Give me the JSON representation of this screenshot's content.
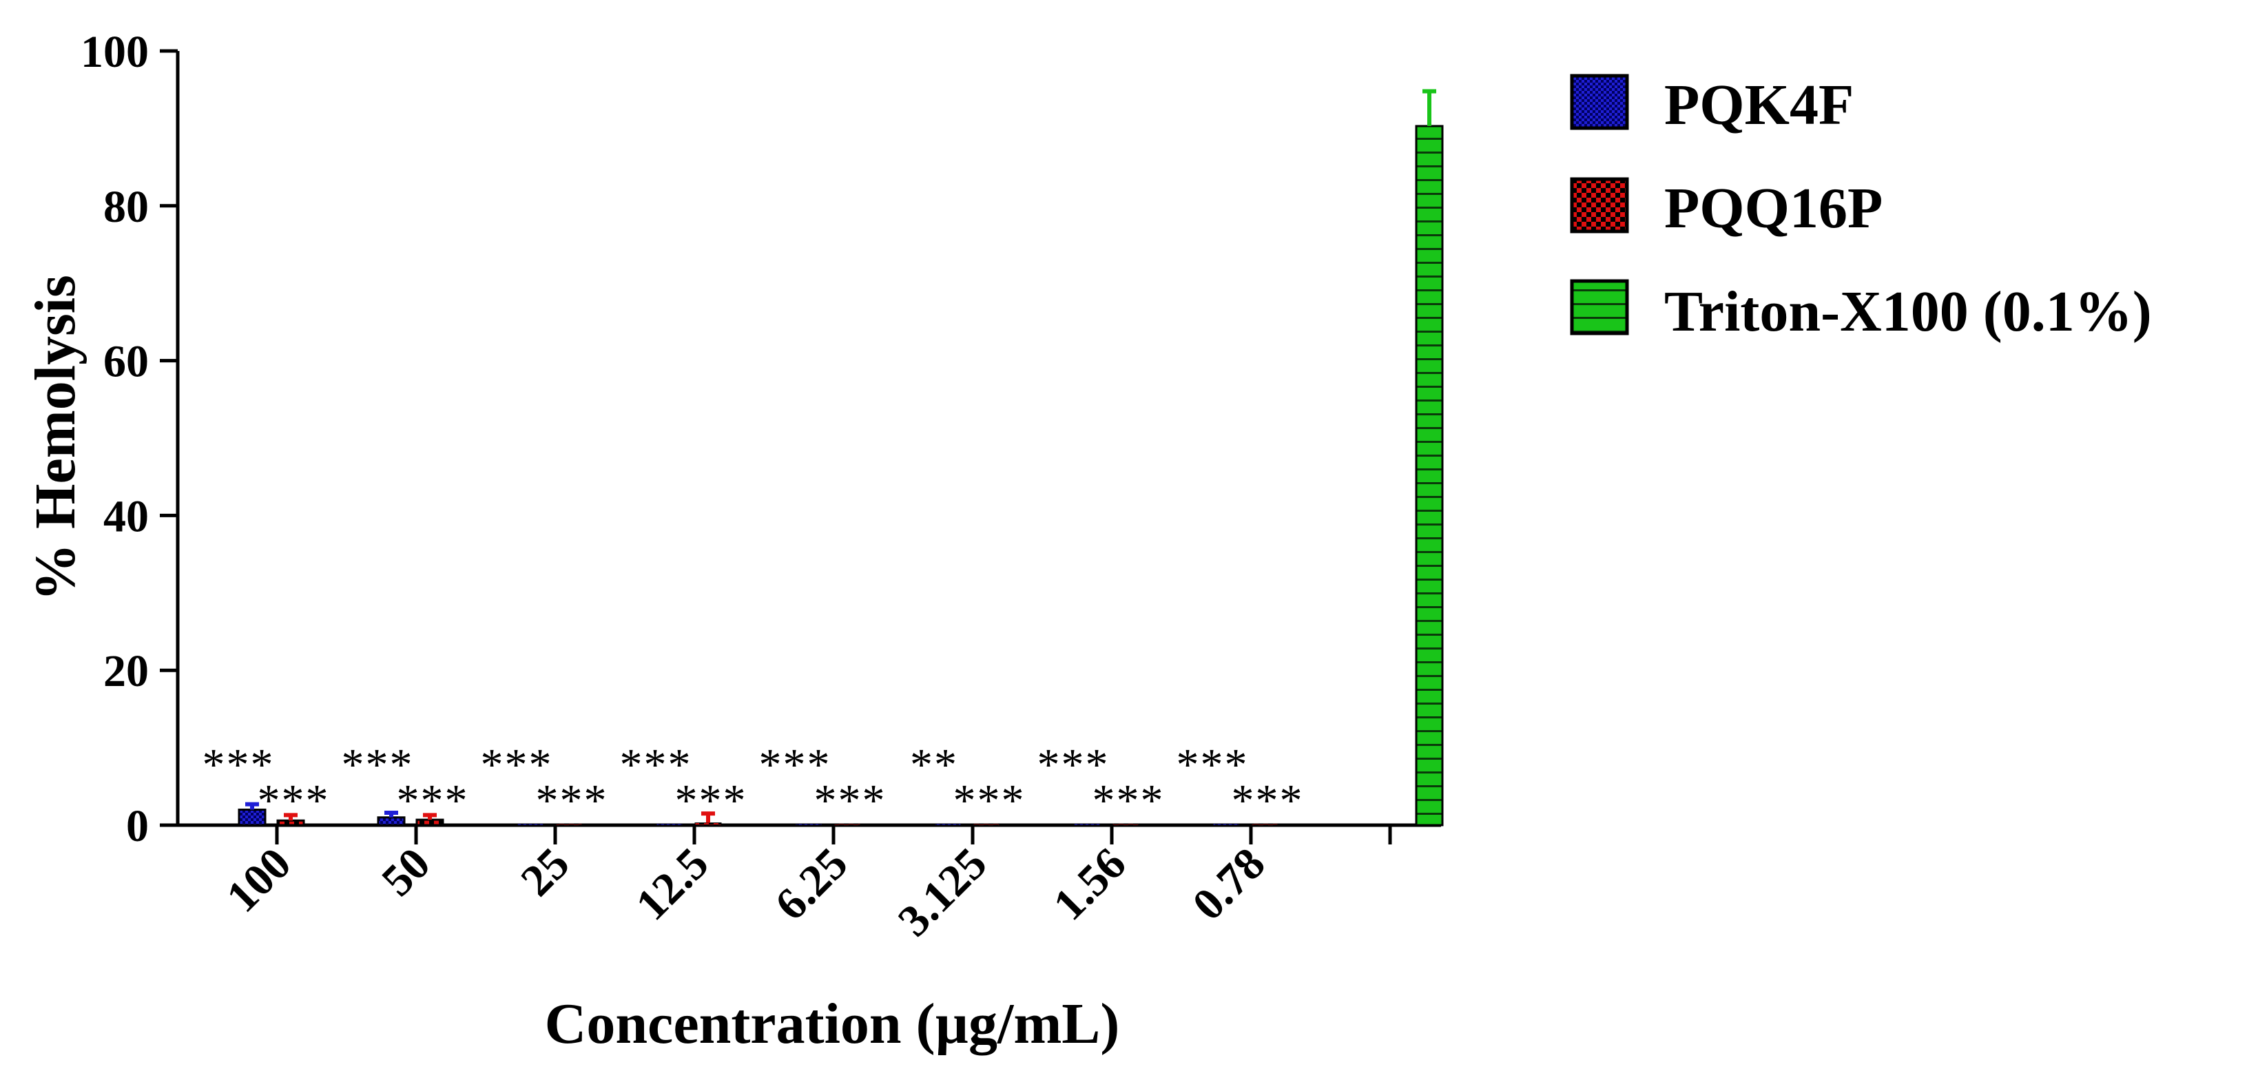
{
  "chart_data": {
    "type": "bar",
    "xlabel": "Concentration (µg/mL)",
    "ylabel": "% Hemolysis",
    "ylim": [
      0,
      100
    ],
    "yticks": [
      0,
      20,
      40,
      60,
      80,
      100
    ],
    "categories": [
      "100",
      "50",
      "25",
      "12.5",
      "6.25",
      "3.125",
      "1.56",
      "0.78",
      ""
    ],
    "series": [
      {
        "name": "PQK4F",
        "color": "#1f1fd6",
        "pattern": "checker-small",
        "values": [
          2.0,
          1.0,
          0.1,
          0.1,
          0.0,
          0.1,
          0.1,
          0.0,
          null
        ],
        "errors": [
          0.7,
          0.6,
          0.0,
          0.0,
          0.0,
          0.0,
          0.0,
          0.0,
          null
        ],
        "significance": [
          "***",
          "***",
          "***",
          "***",
          "***",
          "**",
          "***",
          "***",
          ""
        ]
      },
      {
        "name": "PQQ16P",
        "color": "#e01010",
        "pattern": "checker-large",
        "values": [
          0.6,
          0.7,
          0.1,
          0.3,
          0.0,
          0.1,
          0.0,
          0.0,
          null
        ],
        "errors": [
          0.7,
          0.6,
          0.0,
          1.2,
          0.0,
          0.0,
          0.0,
          0.0,
          null
        ],
        "significance": [
          "***",
          "***",
          "***",
          "***",
          "***",
          "***",
          "***",
          "***",
          ""
        ]
      },
      {
        "name": "Triton-X100 (0.1%)",
        "color": "#19c419",
        "pattern": "horizontal-lines",
        "values": [
          null,
          null,
          null,
          null,
          null,
          null,
          null,
          null,
          90.3
        ],
        "errors": [
          null,
          null,
          null,
          null,
          null,
          null,
          null,
          null,
          4.5
        ],
        "significance": [
          "",
          "",
          "",
          "",
          "",
          "",
          "",
          "",
          ""
        ]
      }
    ],
    "legend": {
      "placement": "right",
      "entries": [
        "PQK4F",
        "PQQ16P",
        "Triton-X100 (0.1%)"
      ]
    }
  }
}
